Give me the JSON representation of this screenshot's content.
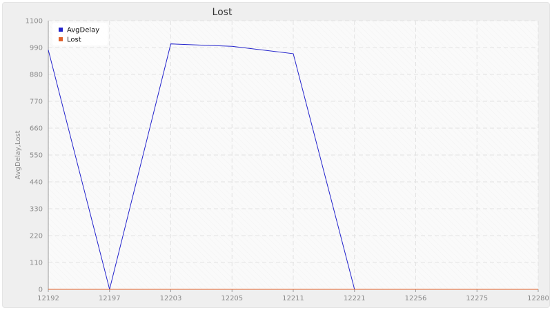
{
  "chart_data": {
    "type": "line",
    "title": "Lost",
    "xlabel": "",
    "ylabel": "AvgDelay,Lost",
    "categories": [
      "12192",
      "12197",
      "12203",
      "12205",
      "12211",
      "12221",
      "12256",
      "12275",
      "12280"
    ],
    "ylim": [
      0,
      1100
    ],
    "yticks": [
      0,
      110,
      220,
      330,
      440,
      550,
      660,
      770,
      880,
      990,
      1100
    ],
    "grid": true,
    "legend_position": "top-left",
    "series": [
      {
        "name": "AvgDelay",
        "color": "#2222cc",
        "values": [
          980,
          0,
          1005,
          995,
          965,
          0,
          0,
          0,
          0
        ]
      },
      {
        "name": "Lost",
        "color": "#e0602a",
        "values": [
          0,
          0,
          0,
          0,
          0,
          0,
          0,
          0,
          0
        ]
      }
    ]
  }
}
